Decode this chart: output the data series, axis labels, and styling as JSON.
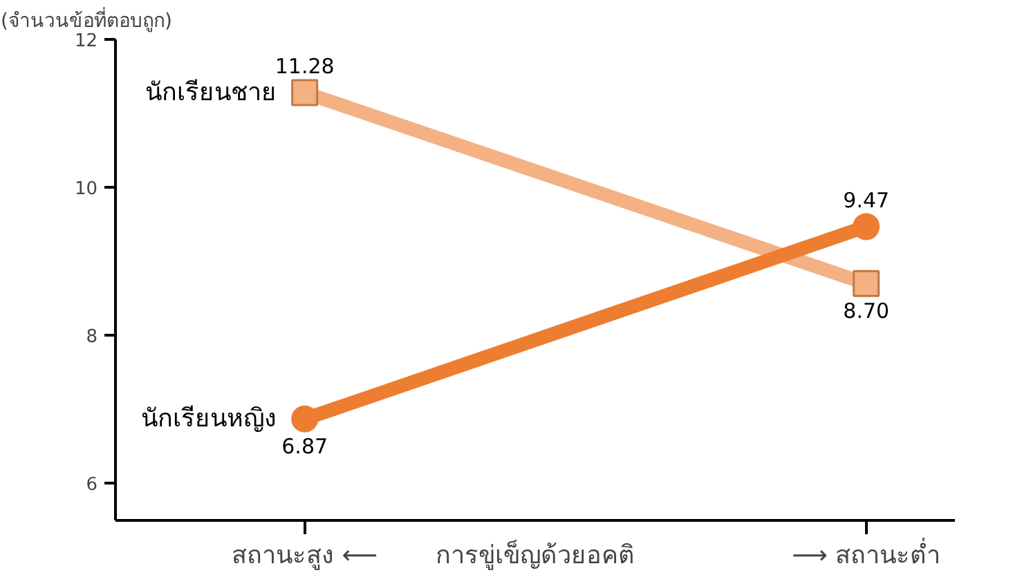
{
  "chart_data": {
    "type": "line",
    "ylabel": "(จำนวนข้อที่ตอบถูก)",
    "xlabel": "การขู่เข็ญด้วยอคติ",
    "categories": [
      "สถานะสูง ⟵",
      "⟶ สถานะต่ำ"
    ],
    "ylim": [
      5.5,
      12
    ],
    "yticks": [
      6,
      8,
      10,
      12
    ],
    "grid": false,
    "series": [
      {
        "name": "นักเรียนชาย",
        "color": "#f4b183",
        "marker": "square",
        "values": [
          11.28,
          8.7
        ],
        "value_labels": [
          "11.28",
          "8.70"
        ]
      },
      {
        "name": "นักเรียนหญิง",
        "color": "#ed7d31",
        "marker": "circle",
        "values": [
          6.87,
          9.47
        ],
        "value_labels": [
          "6.87",
          "9.47"
        ]
      }
    ]
  }
}
